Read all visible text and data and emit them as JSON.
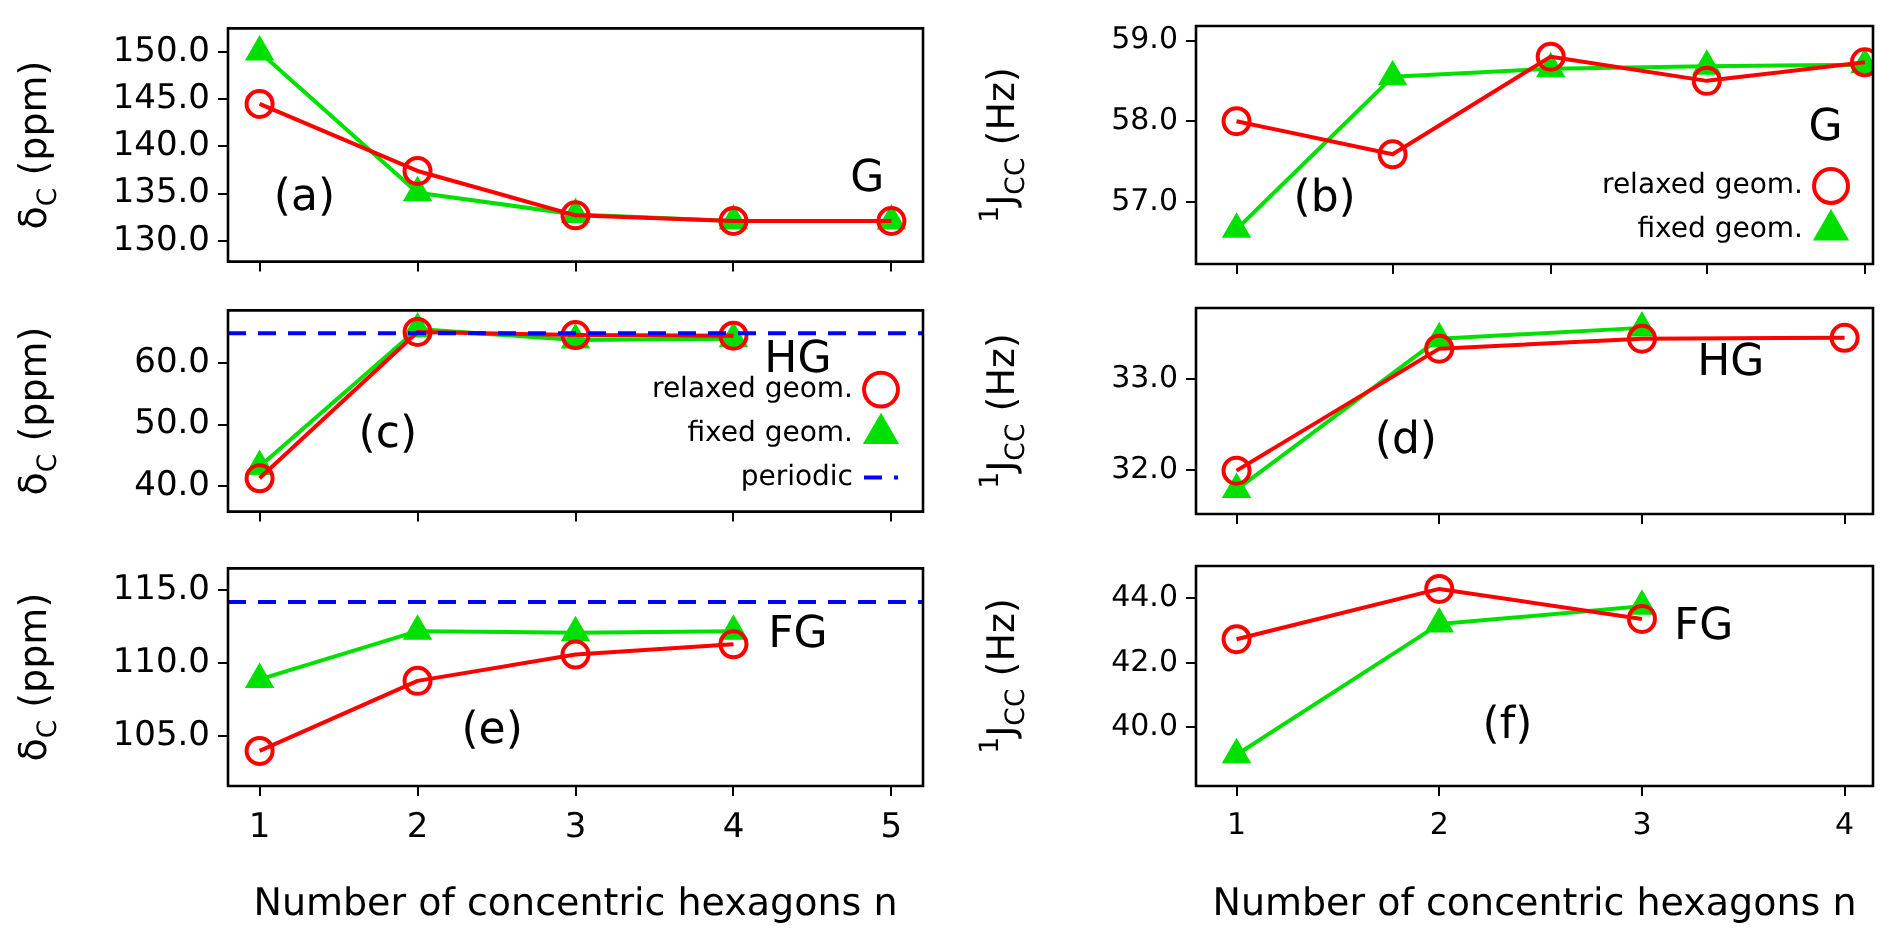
{
  "chart_data": [
    {
      "type": "line",
      "ylabel": "δ$_{C}$ (ppm)",
      "x": [
        1,
        2,
        3,
        4,
        5
      ],
      "xlim": [
        0.8,
        5.2
      ],
      "xticks": [
        1,
        2,
        3,
        4,
        5
      ],
      "ylim": [
        127.8,
        152.5
      ],
      "yticks": [
        {
          "value": 130,
          "label": "130.0"
        },
        {
          "value": 135,
          "label": "135.0"
        },
        {
          "value": 140,
          "label": "140.0"
        },
        {
          "value": 145,
          "label": "145.0"
        },
        {
          "value": 150,
          "label": "150.0"
        }
      ],
      "series": [
        {
          "color": "#ff0000",
          "marker": "circle",
          "values": [
            144.5,
            137.4,
            132.7,
            132.1,
            132.1
          ]
        },
        {
          "color": "#00e000",
          "marker": "triangle",
          "values": [
            150.0,
            135.1,
            132.8,
            132.1,
            132.1
          ]
        }
      ],
      "annotations": [
        "(a)",
        "G"
      ],
      "grid": false,
      "legend": false,
      "tick_labels": "y"
    },
    {
      "type": "line",
      "ylabel": "$^{1}$J$_{CC}$ (Hz)",
      "x": [
        1,
        1.77,
        2.55,
        3.32,
        4.1
      ],
      "xlim": [
        0.8,
        4.14
      ],
      "xticks": [
        {
          "value": 1,
          "label": null
        },
        {
          "value": 1.77,
          "label": null
        },
        {
          "value": 2.55,
          "label": null
        },
        {
          "value": 3.32,
          "label": null
        },
        {
          "value": 4.1,
          "label": null
        }
      ],
      "ylim": [
        56.23,
        59.18
      ],
      "yticks": [
        {
          "value": 57,
          "label": "57.0"
        },
        {
          "value": 58,
          "label": "58.0"
        },
        {
          "value": 59,
          "label": "59.0"
        }
      ],
      "series": [
        {
          "name": "relaxed geom.",
          "color": "#ff0000",
          "marker": "circle",
          "values": [
            58.0,
            57.59,
            58.8,
            58.5,
            58.73
          ]
        },
        {
          "name": "fixed geom.",
          "color": "#00e000",
          "marker": "triangle",
          "values": [
            56.66,
            58.55,
            58.65,
            58.68,
            58.7
          ]
        }
      ],
      "annotations": [
        "(b)",
        "G"
      ],
      "grid": false,
      "legend": "bottom right",
      "tick_labels": "y"
    },
    {
      "type": "line",
      "ylabel": "δ$_{C}$ (ppm)",
      "x": [
        1,
        2,
        3,
        4
      ],
      "xlim": [
        0.8,
        5.2
      ],
      "xticks": [
        1,
        2,
        3,
        4,
        5
      ],
      "ylim": [
        35.9,
        68.5
      ],
      "yticks": [
        {
          "value": 40,
          "label": "40.0"
        },
        {
          "value": 50,
          "label": "50.0"
        },
        {
          "value": 60,
          "label": "60.0"
        }
      ],
      "series": [
        {
          "name": "relaxed geom.",
          "color": "#ff0000",
          "marker": "circle",
          "values": [
            41.3,
            65.0,
            64.5,
            64.4
          ]
        },
        {
          "name": "fixed geom.",
          "color": "#00e000",
          "marker": "triangle",
          "values": [
            43.2,
            65.5,
            63.7,
            63.9
          ]
        }
      ],
      "ref_lines": [
        {
          "axis": "y",
          "value": 64.8,
          "label": "periodic",
          "color": "#0000ff",
          "line_style": "dashed"
        }
      ],
      "annotations": [
        "(c)",
        "HG"
      ],
      "grid": false,
      "legend": "bottom right",
      "tick_labels": "y"
    },
    {
      "type": "line",
      "ylabel": "$^{1}$J$_{CC}$ (Hz)",
      "x": [
        1,
        2,
        3,
        4
      ],
      "xlim": [
        0.8,
        4.14
      ],
      "xticks": [
        1,
        2,
        3,
        4
      ],
      "ylim": [
        31.51,
        33.79
      ],
      "yticks": [
        {
          "value": 32,
          "label": "32.0"
        },
        {
          "value": 33,
          "label": "33.0"
        }
      ],
      "series": [
        {
          "color": "#ff0000",
          "marker": "circle",
          "values": [
            31.99,
            33.34,
            33.45,
            33.46
          ]
        },
        {
          "color": "#00e000",
          "marker": "triangle",
          "values": [
            31.78,
            33.45,
            33.57,
            null
          ]
        }
      ],
      "annotations": [
        "(d)",
        "HG"
      ],
      "grid": false,
      "legend": false,
      "tick_labels": "y"
    },
    {
      "type": "line",
      "ylabel": "δ$_{C}$ (ppm)",
      "xlabel": "Number of concentric hexagons n",
      "x": [
        1,
        2,
        3,
        4
      ],
      "xlim": [
        0.8,
        5.2
      ],
      "xticks": [
        1,
        2,
        3,
        4,
        5
      ],
      "ylim": [
        101.6,
        116.5
      ],
      "yticks": [
        {
          "value": 105,
          "label": "105.0"
        },
        {
          "value": 110,
          "label": "110.0"
        },
        {
          "value": 115,
          "label": "115.0"
        }
      ],
      "series": [
        {
          "color": "#ff0000",
          "marker": "circle",
          "values": [
            104.0,
            108.8,
            110.6,
            111.3
          ]
        },
        {
          "color": "#00e000",
          "marker": "triangle",
          "values": [
            108.9,
            112.2,
            112.1,
            112.2
          ]
        }
      ],
      "ref_lines": [
        {
          "axis": "y",
          "value": 114.2,
          "color": "#0000ff",
          "line_style": "dashed"
        }
      ],
      "annotations": [
        "(e)",
        "FG"
      ],
      "grid": false,
      "legend": false
    },
    {
      "type": "line",
      "ylabel": "$^{1}$J$_{CC}$ (Hz)",
      "xlabel": "Number of concentric hexagons n",
      "x": [
        1,
        2,
        3
      ],
      "xlim": [
        0.8,
        4.14
      ],
      "xticks": [
        1,
        2,
        3,
        4
      ],
      "ylim": [
        38.18,
        45.0
      ],
      "yticks": [
        {
          "value": 40,
          "label": "40.0"
        },
        {
          "value": 42,
          "label": "42.0"
        },
        {
          "value": 44,
          "label": "44.0"
        }
      ],
      "series": [
        {
          "color": "#ff0000",
          "marker": "circle",
          "values": [
            42.73,
            44.29,
            43.36
          ]
        },
        {
          "color": "#00e000",
          "marker": "triangle",
          "values": [
            39.15,
            43.2,
            43.75
          ]
        }
      ],
      "annotations": [
        "(f)",
        "FG"
      ],
      "grid": false,
      "legend": false
    }
  ]
}
